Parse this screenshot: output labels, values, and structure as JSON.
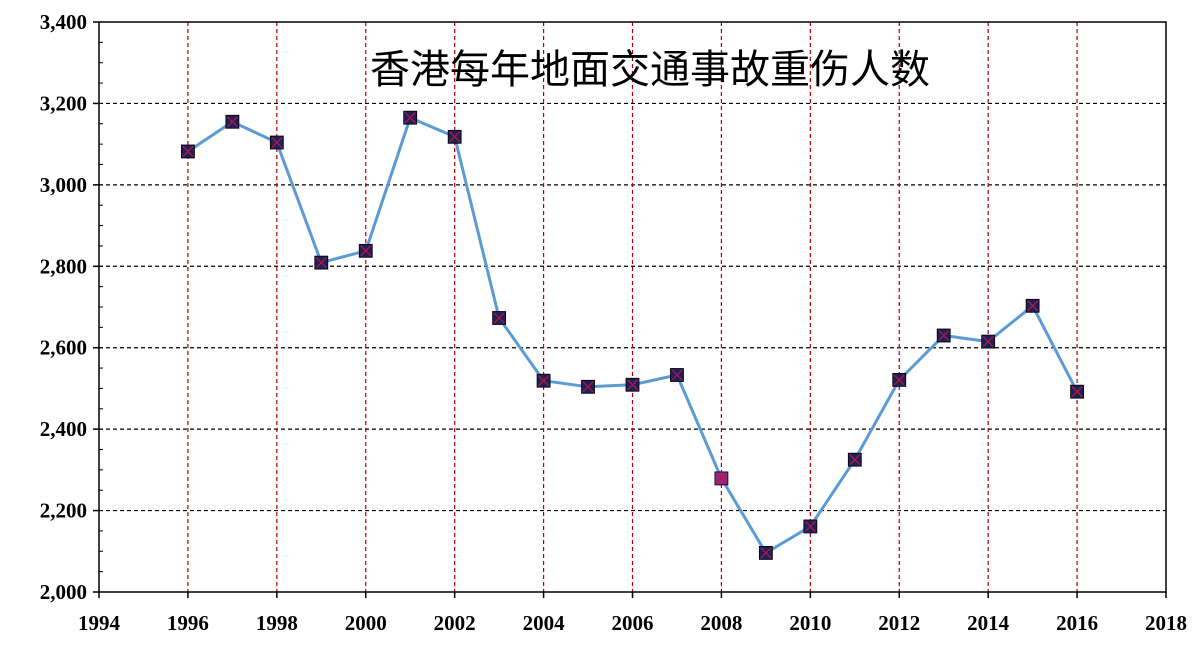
{
  "chart_data": {
    "type": "line",
    "title": "香港每年地面交通事故重伤人数",
    "xlabel": "",
    "ylabel": "",
    "xlim": [
      1994,
      2018
    ],
    "ylim": [
      2000,
      3400
    ],
    "x_ticks": [
      "1994",
      "1996",
      "1998",
      "2000",
      "2002",
      "2004",
      "2006",
      "2008",
      "2010",
      "2012",
      "2014",
      "2016",
      "2018"
    ],
    "y_ticks": [
      "2,000",
      "2,200",
      "2,400",
      "2,600",
      "2,800",
      "3,000",
      "3,200",
      "3,400"
    ],
    "grid": {
      "horizontal": "dashed black at each major y tick",
      "vertical": "dashed dark red at each major x tick"
    },
    "legend": "none",
    "series": [
      {
        "line_color": "#5b9bd5",
        "marker_color": "#1f1f5f",
        "marker_x_color": "#c0182e",
        "highlight_color": "#8e2a8e",
        "highlight_x": 2008,
        "points": [
          {
            "x": 1996,
            "y": 3082
          },
          {
            "x": 1997,
            "y": 3155
          },
          {
            "x": 1998,
            "y": 3104
          },
          {
            "x": 1999,
            "y": 2809
          },
          {
            "x": 2000,
            "y": 2838
          },
          {
            "x": 2001,
            "y": 3165
          },
          {
            "x": 2002,
            "y": 3118
          },
          {
            "x": 2003,
            "y": 2673
          },
          {
            "x": 2004,
            "y": 2519
          },
          {
            "x": 2005,
            "y": 2504
          },
          {
            "x": 2006,
            "y": 2509
          },
          {
            "x": 2007,
            "y": 2533
          },
          {
            "x": 2008,
            "y": 2279
          },
          {
            "x": 2009,
            "y": 2096
          },
          {
            "x": 2010,
            "y": 2161
          },
          {
            "x": 2011,
            "y": 2325
          },
          {
            "x": 2012,
            "y": 2521
          },
          {
            "x": 2013,
            "y": 2630
          },
          {
            "x": 2014,
            "y": 2615
          },
          {
            "x": 2015,
            "y": 2703
          },
          {
            "x": 2016,
            "y": 2492
          }
        ]
      }
    ]
  }
}
